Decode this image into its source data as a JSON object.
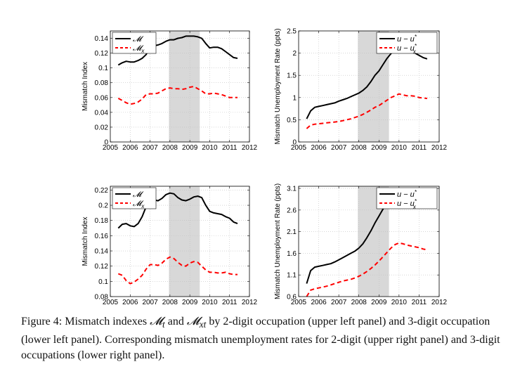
{
  "caption": {
    "label": "Figure 4:",
    "t1": "Mismatch indexes ",
    "m1": "𝓜",
    "s1": "t",
    "t2": " and ",
    "m2": "𝓜",
    "s2": "xt",
    "t3": " by 2-digit occupation (upper left panel) and 3-digit occupation (lower left panel). Corresponding mismatch unemployment rates for 2-digit (upper right panel) and 3-digit occupations (lower right panel)."
  },
  "colors": {
    "series1": "#000000",
    "series2": "#ff0000",
    "shade": "#d8d8d8",
    "grid": "#bfbfbf"
  },
  "chart_data": [
    {
      "type": "line",
      "panel": "upper-left",
      "ylabel": "Mismatch Index",
      "xlim": [
        2005,
        2012
      ],
      "ylim": [
        0,
        0.15
      ],
      "xticks": [
        2005,
        2006,
        2007,
        2008,
        2009,
        2010,
        2011,
        2012
      ],
      "yticks": [
        0,
        0.02,
        0.04,
        0.06,
        0.08,
        0.1,
        0.12,
        0.14
      ],
      "ytick_labels": [
        "0",
        "0.02",
        "0.04",
        "0.06",
        "0.08",
        "0.1",
        "0.12",
        "0.14"
      ],
      "shaded_region": [
        2007.95,
        2009.5
      ],
      "legend": {
        "position": "top-left",
        "entries": [
          {
            "symbol": "𝓜",
            "sub": ""
          },
          {
            "symbol": "𝓜",
            "sub": "x"
          }
        ]
      },
      "series": [
        {
          "style": "solid",
          "x": [
            2005.4,
            2005.6,
            2005.8,
            2006,
            2006.2,
            2006.4,
            2006.6,
            2006.8,
            2007,
            2007.2,
            2007.4,
            2007.6,
            2007.8,
            2008,
            2008.2,
            2008.4,
            2008.6,
            2008.8,
            2009,
            2009.2,
            2009.4,
            2009.6,
            2009.8,
            2010,
            2010.2,
            2010.4,
            2010.6,
            2010.8,
            2011,
            2011.2,
            2011.4
          ],
          "y": [
            0.104,
            0.107,
            0.109,
            0.108,
            0.108,
            0.11,
            0.113,
            0.118,
            0.128,
            0.13,
            0.131,
            0.133,
            0.136,
            0.138,
            0.138,
            0.14,
            0.141,
            0.143,
            0.143,
            0.143,
            0.142,
            0.14,
            0.133,
            0.127,
            0.128,
            0.128,
            0.126,
            0.122,
            0.118,
            0.114,
            0.113
          ]
        },
        {
          "style": "dashed",
          "x": [
            2005.4,
            2005.6,
            2005.8,
            2006,
            2006.2,
            2006.4,
            2006.6,
            2006.8,
            2007,
            2007.2,
            2007.4,
            2007.6,
            2007.8,
            2008,
            2008.2,
            2008.4,
            2008.6,
            2008.8,
            2009,
            2009.2,
            2009.4,
            2009.6,
            2009.8,
            2010,
            2010.2,
            2010.4,
            2010.6,
            2010.8,
            2011,
            2011.2,
            2011.4
          ],
          "y": [
            0.059,
            0.056,
            0.053,
            0.051,
            0.052,
            0.054,
            0.058,
            0.064,
            0.065,
            0.065,
            0.066,
            0.069,
            0.072,
            0.073,
            0.072,
            0.072,
            0.071,
            0.072,
            0.074,
            0.075,
            0.072,
            0.069,
            0.065,
            0.065,
            0.066,
            0.065,
            0.064,
            0.062,
            0.06,
            0.06,
            0.06
          ]
        }
      ]
    },
    {
      "type": "line",
      "panel": "upper-right",
      "ylabel": "Mismatch Unemployment Rate (ppts)",
      "xlim": [
        2005,
        2012
      ],
      "ylim": [
        0,
        2.5
      ],
      "xticks": [
        2005,
        2006,
        2007,
        2008,
        2009,
        2010,
        2011,
        2012
      ],
      "yticks": [
        0,
        0.5,
        1,
        1.5,
        2,
        2.5
      ],
      "ytick_labels": [
        "0",
        "0.5",
        "1",
        "1.5",
        "2",
        "2.5"
      ],
      "shaded_region": [
        2007.95,
        2009.5
      ],
      "legend": {
        "position": "top-right",
        "entries": [
          {
            "symbol": "u − u",
            "sub": "",
            "sup": "*"
          },
          {
            "symbol": "u − u",
            "sub": "x",
            "sup": "*"
          }
        ]
      },
      "series": [
        {
          "style": "solid",
          "x": [
            2005.4,
            2005.6,
            2005.8,
            2006,
            2006.2,
            2006.4,
            2006.6,
            2006.8,
            2007,
            2007.2,
            2007.4,
            2007.6,
            2007.8,
            2008,
            2008.2,
            2008.4,
            2008.6,
            2008.8,
            2009,
            2009.2,
            2009.4,
            2009.6,
            2009.8,
            2010,
            2010.2,
            2010.4,
            2010.6,
            2010.8,
            2011,
            2011.2,
            2011.4
          ],
          "y": [
            0.52,
            0.7,
            0.78,
            0.8,
            0.82,
            0.84,
            0.86,
            0.88,
            0.92,
            0.95,
            0.98,
            1.02,
            1.06,
            1.1,
            1.16,
            1.24,
            1.36,
            1.5,
            1.6,
            1.74,
            1.88,
            1.99,
            2.06,
            2.08,
            2.06,
            2.03,
            2.02,
            2.0,
            1.95,
            1.9,
            1.87
          ]
        },
        {
          "style": "dashed",
          "x": [
            2005.4,
            2005.6,
            2005.8,
            2006,
            2006.2,
            2006.4,
            2006.6,
            2006.8,
            2007,
            2007.2,
            2007.4,
            2007.6,
            2007.8,
            2008,
            2008.2,
            2008.4,
            2008.6,
            2008.8,
            2009,
            2009.2,
            2009.4,
            2009.6,
            2009.8,
            2010,
            2010.2,
            2010.4,
            2010.6,
            2010.8,
            2011,
            2011.2,
            2011.4
          ],
          "y": [
            0.3,
            0.38,
            0.4,
            0.41,
            0.42,
            0.43,
            0.44,
            0.45,
            0.46,
            0.48,
            0.5,
            0.52,
            0.55,
            0.58,
            0.62,
            0.67,
            0.72,
            0.78,
            0.82,
            0.88,
            0.94,
            1.0,
            1.04,
            1.08,
            1.06,
            1.04,
            1.04,
            1.03,
            1.0,
            0.99,
            0.98
          ]
        }
      ]
    },
    {
      "type": "line",
      "panel": "lower-left",
      "ylabel": "Mismatch Index",
      "xlim": [
        2005,
        2012
      ],
      "ylim": [
        0.08,
        0.225
      ],
      "xticks": [
        2005,
        2006,
        2007,
        2008,
        2009,
        2010,
        2011,
        2012
      ],
      "yticks": [
        0.08,
        0.1,
        0.12,
        0.14,
        0.16,
        0.18,
        0.2,
        0.22
      ],
      "ytick_labels": [
        "0.08",
        "0.1",
        "0.12",
        "0.14",
        "0.16",
        "0.18",
        "0.2",
        "0.22"
      ],
      "shaded_region": [
        2007.95,
        2009.5
      ],
      "legend": {
        "position": "top-left",
        "entries": [
          {
            "symbol": "𝓜",
            "sub": ""
          },
          {
            "symbol": "𝓜",
            "sub": "x"
          }
        ]
      },
      "series": [
        {
          "style": "solid",
          "x": [
            2005.4,
            2005.6,
            2005.8,
            2006,
            2006.2,
            2006.4,
            2006.6,
            2006.8,
            2007,
            2007.2,
            2007.4,
            2007.6,
            2007.8,
            2008,
            2008.2,
            2008.4,
            2008.6,
            2008.8,
            2009,
            2009.2,
            2009.4,
            2009.6,
            2009.8,
            2010,
            2010.2,
            2010.4,
            2010.6,
            2010.8,
            2011,
            2011.2,
            2011.4
          ],
          "y": [
            0.17,
            0.175,
            0.176,
            0.173,
            0.172,
            0.176,
            0.185,
            0.198,
            0.206,
            0.207,
            0.206,
            0.209,
            0.214,
            0.216,
            0.215,
            0.21,
            0.207,
            0.206,
            0.208,
            0.211,
            0.212,
            0.21,
            0.2,
            0.192,
            0.19,
            0.189,
            0.188,
            0.185,
            0.183,
            0.178,
            0.176
          ]
        },
        {
          "style": "dashed",
          "x": [
            2005.4,
            2005.6,
            2005.8,
            2006,
            2006.2,
            2006.4,
            2006.6,
            2006.8,
            2007,
            2007.2,
            2007.4,
            2007.6,
            2007.8,
            2008,
            2008.2,
            2008.4,
            2008.6,
            2008.8,
            2009,
            2009.2,
            2009.4,
            2009.6,
            2009.8,
            2010,
            2010.2,
            2010.4,
            2010.6,
            2010.8,
            2011,
            2011.2,
            2011.4
          ],
          "y": [
            0.11,
            0.108,
            0.101,
            0.097,
            0.099,
            0.103,
            0.108,
            0.116,
            0.122,
            0.122,
            0.121,
            0.124,
            0.129,
            0.132,
            0.13,
            0.125,
            0.121,
            0.12,
            0.124,
            0.126,
            0.125,
            0.12,
            0.115,
            0.112,
            0.112,
            0.111,
            0.111,
            0.112,
            0.11,
            0.109,
            0.109
          ]
        }
      ]
    },
    {
      "type": "line",
      "panel": "lower-right",
      "ylabel": "Mismatch Unemployment Rate (ppts)",
      "xlim": [
        2005,
        2012
      ],
      "ylim": [
        0.6,
        3.15
      ],
      "xticks": [
        2005,
        2006,
        2007,
        2008,
        2009,
        2010,
        2011,
        2012
      ],
      "yticks": [
        0.6,
        1.1,
        1.6,
        2.1,
        2.6,
        3.1
      ],
      "ytick_labels": [
        "0.6",
        "1.1",
        "1.6",
        "2.1",
        "2.6",
        "3.1"
      ],
      "shaded_region": [
        2007.95,
        2009.5
      ],
      "legend": {
        "position": "top-right",
        "entries": [
          {
            "symbol": "u − u",
            "sub": "",
            "sup": "*"
          },
          {
            "symbol": "u − u",
            "sub": "x",
            "sup": "*"
          }
        ]
      },
      "series": [
        {
          "style": "solid",
          "x": [
            2005.4,
            2005.6,
            2005.8,
            2006,
            2006.2,
            2006.4,
            2006.6,
            2006.8,
            2007,
            2007.2,
            2007.4,
            2007.6,
            2007.8,
            2008,
            2008.2,
            2008.4,
            2008.6,
            2008.8,
            2009,
            2009.2,
            2009.4,
            2009.6,
            2009.8,
            2010,
            2010.2,
            2010.4,
            2010.6,
            2010.8,
            2011,
            2011.2,
            2011.4
          ],
          "y": [
            0.9,
            1.2,
            1.28,
            1.3,
            1.32,
            1.34,
            1.36,
            1.4,
            1.45,
            1.5,
            1.55,
            1.6,
            1.65,
            1.72,
            1.82,
            1.96,
            2.12,
            2.3,
            2.46,
            2.62,
            2.78,
            2.92,
            3.04,
            3.09,
            3.06,
            3.02,
            2.99,
            2.96,
            2.9,
            2.82,
            2.77
          ]
        },
        {
          "style": "dashed",
          "x": [
            2005.4,
            2005.6,
            2005.8,
            2006,
            2006.2,
            2006.4,
            2006.6,
            2006.8,
            2007,
            2007.2,
            2007.4,
            2007.6,
            2007.8,
            2008,
            2008.2,
            2008.4,
            2008.6,
            2008.8,
            2009,
            2009.2,
            2009.4,
            2009.6,
            2009.8,
            2010,
            2010.2,
            2010.4,
            2010.6,
            2010.8,
            2011,
            2011.2,
            2011.4
          ],
          "y": [
            0.6,
            0.75,
            0.78,
            0.8,
            0.82,
            0.84,
            0.87,
            0.9,
            0.93,
            0.96,
            0.98,
            1.0,
            1.03,
            1.07,
            1.12,
            1.18,
            1.25,
            1.33,
            1.42,
            1.52,
            1.62,
            1.72,
            1.8,
            1.84,
            1.82,
            1.79,
            1.77,
            1.75,
            1.73,
            1.7,
            1.68
          ]
        }
      ]
    }
  ]
}
